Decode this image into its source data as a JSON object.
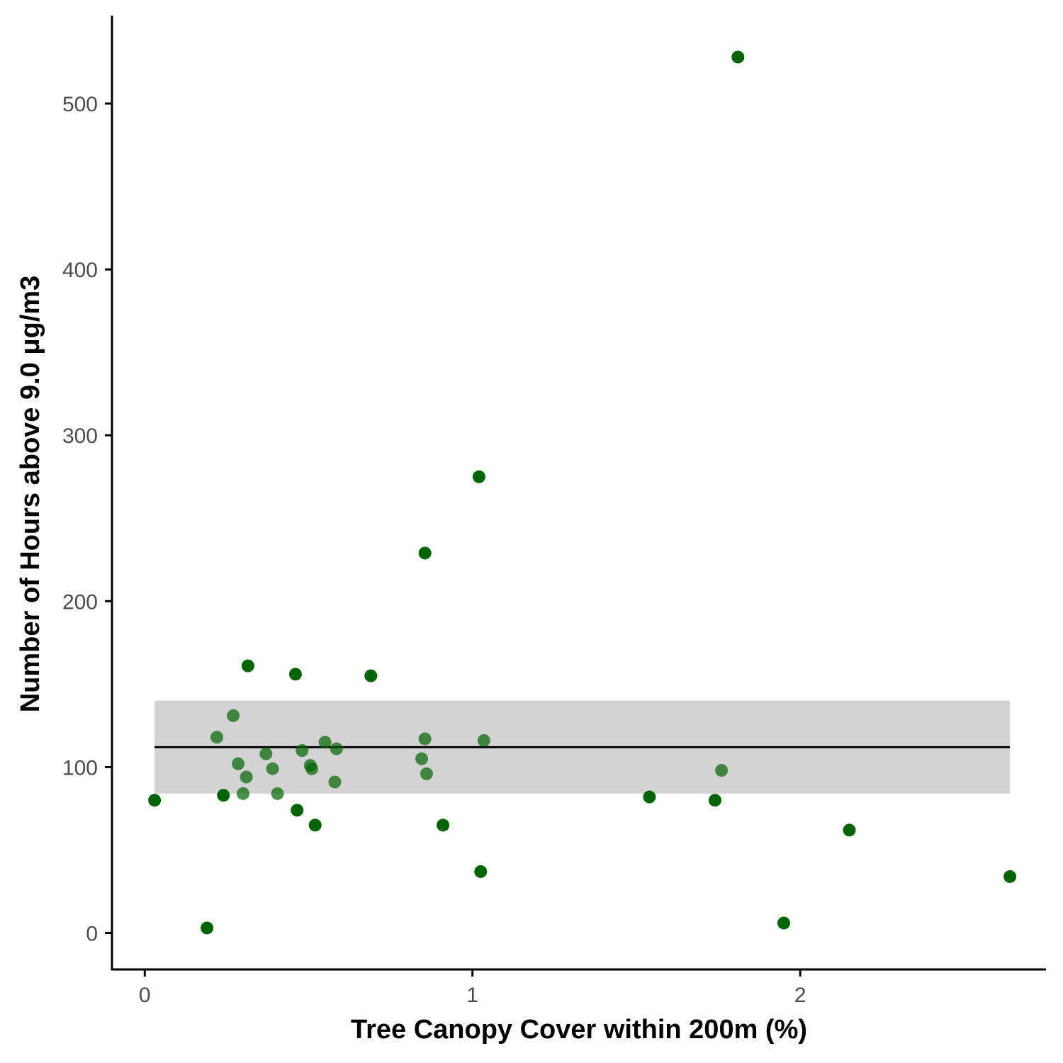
{
  "chart_data": {
    "type": "scatter",
    "title": "",
    "xlabel": "Tree Canopy Cover within 200m (%)",
    "ylabel": "Number of Hours above 9.0 μg/m3",
    "xlim": [
      -0.1,
      2.75
    ],
    "ylim": [
      -22,
      553
    ],
    "x_ticks": [
      0,
      1,
      2
    ],
    "y_ticks": [
      0,
      100,
      200,
      300,
      400,
      500
    ],
    "grid": false,
    "legend": "none",
    "point_color": "#006400",
    "fit": {
      "type": "constant",
      "y": 112,
      "x_range": [
        0.03,
        2.64
      ],
      "ci": [
        84,
        140
      ],
      "line_color": "#000000",
      "band_color": "#d3d3d3"
    },
    "points": [
      {
        "x": 0.03,
        "y": 80
      },
      {
        "x": 0.19,
        "y": 3
      },
      {
        "x": 0.22,
        "y": 118
      },
      {
        "x": 0.24,
        "y": 83
      },
      {
        "x": 0.27,
        "y": 131
      },
      {
        "x": 0.285,
        "y": 102
      },
      {
        "x": 0.3,
        "y": 84
      },
      {
        "x": 0.31,
        "y": 94
      },
      {
        "x": 0.315,
        "y": 161
      },
      {
        "x": 0.37,
        "y": 108
      },
      {
        "x": 0.39,
        "y": 99
      },
      {
        "x": 0.405,
        "y": 84
      },
      {
        "x": 0.46,
        "y": 156
      },
      {
        "x": 0.465,
        "y": 74
      },
      {
        "x": 0.48,
        "y": 110
      },
      {
        "x": 0.505,
        "y": 101
      },
      {
        "x": 0.51,
        "y": 99
      },
      {
        "x": 0.52,
        "y": 65
      },
      {
        "x": 0.55,
        "y": 115
      },
      {
        "x": 0.58,
        "y": 91
      },
      {
        "x": 0.585,
        "y": 111
      },
      {
        "x": 0.69,
        "y": 155
      },
      {
        "x": 0.845,
        "y": 105
      },
      {
        "x": 0.855,
        "y": 229
      },
      {
        "x": 0.855,
        "y": 117
      },
      {
        "x": 0.86,
        "y": 96
      },
      {
        "x": 0.91,
        "y": 65
      },
      {
        "x": 1.02,
        "y": 275
      },
      {
        "x": 1.025,
        "y": 37
      },
      {
        "x": 1.035,
        "y": 116
      },
      {
        "x": 1.54,
        "y": 82
      },
      {
        "x": 1.74,
        "y": 80
      },
      {
        "x": 1.76,
        "y": 98
      },
      {
        "x": 1.81,
        "y": 528
      },
      {
        "x": 1.95,
        "y": 6
      },
      {
        "x": 2.15,
        "y": 62
      },
      {
        "x": 2.64,
        "y": 34
      }
    ]
  }
}
